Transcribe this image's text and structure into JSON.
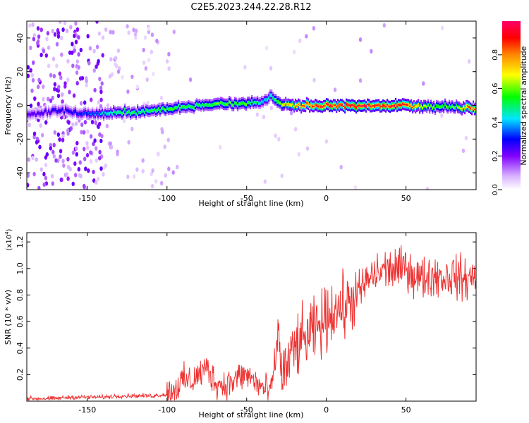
{
  "title": "C2E5.2023.244.22.28.R12",
  "chart_data": [
    {
      "type": "heatmap",
      "xlabel": "Height of straight line (km)",
      "ylabel": "Frequency (Hz)",
      "xlim": [
        -188,
        94
      ],
      "ylim": [
        -50,
        50
      ],
      "xticks": [
        -150,
        -100,
        -50,
        0,
        50
      ],
      "yticks": [
        -40,
        -20,
        0,
        20,
        40
      ],
      "colorbar": {
        "label": "Normalized spectral amplitude",
        "range": [
          0,
          1
        ],
        "ticks": [
          0.0,
          0.2,
          0.4,
          0.6,
          0.8
        ],
        "colormap": [
          "#ffffff",
          "#cc99ff",
          "#7f00ff",
          "#0000ff",
          "#00e5ff",
          "#00ff00",
          "#ffff00",
          "#ff8800",
          "#ff0000",
          "#ff0066"
        ]
      },
      "ridge": {
        "x": [
          -185,
          -170,
          -160,
          -150,
          -140,
          -130,
          -120,
          -110,
          -100,
          -90,
          -80,
          -70,
          -60,
          -50,
          -40,
          -35,
          -30,
          -25,
          -20,
          -10,
          0,
          10,
          20,
          30,
          40,
          50,
          60,
          70,
          80,
          90
        ],
        "y": [
          -5,
          -3,
          -4,
          -5,
          -5,
          -4,
          -4,
          -3,
          -2,
          -1,
          0,
          1,
          1,
          1,
          2,
          6,
          1,
          1,
          0,
          0,
          0,
          0,
          0,
          0,
          0,
          0,
          -1,
          -1,
          -1,
          -1
        ],
        "amplitude": [
          0.25,
          0.3,
          0.3,
          0.35,
          0.45,
          0.55,
          0.55,
          0.55,
          0.6,
          0.55,
          0.55,
          0.6,
          0.6,
          0.6,
          0.45,
          0.5,
          0.65,
          0.75,
          0.8,
          0.9,
          0.95,
          0.95,
          1.0,
          0.95,
          1.0,
          0.95,
          0.7,
          0.6,
          0.6,
          0.9
        ]
      }
    },
    {
      "type": "line",
      "xlabel": "Height of straight line (km)",
      "ylabel": "SNR (10 * v/v)",
      "yscale_label": "(x10",
      "yscale_exp": "4",
      "yscale_close": ")",
      "xlim": [
        -188,
        94
      ],
      "ylim": [
        0,
        1.27
      ],
      "xticks": [
        -150,
        -100,
        -50,
        0,
        50
      ],
      "yticks": [
        0.2,
        0.4,
        0.6,
        0.8,
        1.0,
        1.2
      ],
      "color": "#ee3333",
      "series": [
        {
          "x": [
            -188,
            -180,
            -170,
            -160,
            -150,
            -140,
            -130,
            -120,
            -110,
            -100,
            -95,
            -90,
            -85,
            -80,
            -75,
            -70,
            -65,
            -60,
            -55,
            -50,
            -45,
            -40,
            -35,
            -32,
            -30,
            -28,
            -25,
            -20,
            -15,
            -10,
            -5,
            0,
            5,
            10,
            15,
            20,
            25,
            30,
            35,
            40,
            45,
            50,
            55,
            60,
            65,
            70,
            75,
            80,
            85,
            90,
            94
          ],
          "y": [
            0.02,
            0.02,
            0.02,
            0.03,
            0.03,
            0.03,
            0.04,
            0.04,
            0.04,
            0.05,
            0.1,
            0.15,
            0.15,
            0.2,
            0.25,
            0.15,
            0.12,
            0.14,
            0.18,
            0.2,
            0.15,
            0.1,
            0.06,
            0.3,
            0.55,
            0.2,
            0.25,
            0.4,
            0.45,
            0.5,
            0.55,
            0.62,
            0.7,
            0.7,
            0.75,
            0.8,
            0.9,
            0.95,
            0.98,
            1.0,
            0.98,
            1.02,
            0.95,
            0.92,
            0.95,
            0.95,
            0.93,
            0.95,
            0.92,
            0.92,
            0.95
          ]
        }
      ]
    }
  ]
}
